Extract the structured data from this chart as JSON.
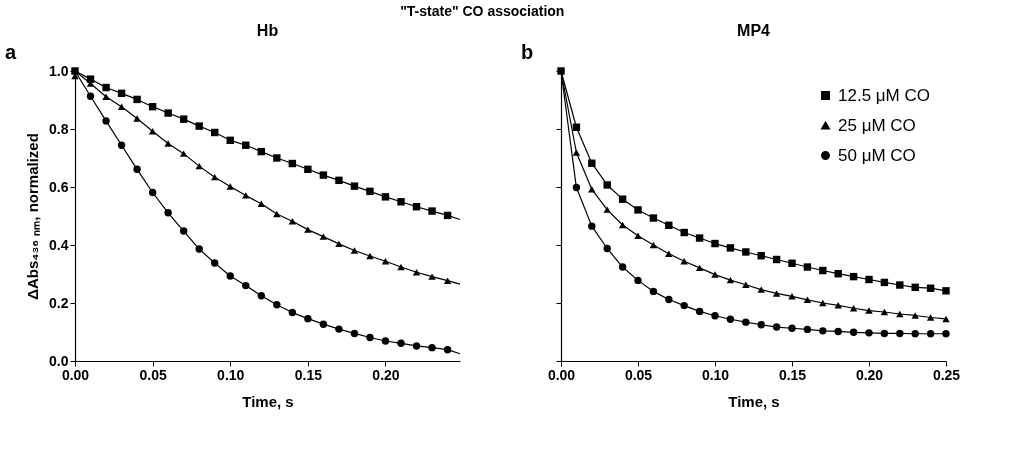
{
  "chart_data": [
    {
      "type": "scatter",
      "title": "Hb",
      "xlabel": "Time, s",
      "ylabel": "ΔAbs₄₃₆ ₙₘ, normalized",
      "annotations": [
        "\"T-state\" CO association",
        "a"
      ],
      "x": [
        0,
        0.01,
        0.02,
        0.03,
        0.04,
        0.05,
        0.06,
        0.07,
        0.08,
        0.09,
        0.1,
        0.11,
        0.12,
        0.13,
        0.14,
        0.15,
        0.16,
        0.17,
        0.18,
        0.19,
        0.2,
        0.21,
        0.22,
        0.23,
        0.24
      ],
      "xlim": [
        0,
        0.248
      ],
      "xticks": [
        {
          "value": 0,
          "label": "0.00"
        },
        {
          "value": 0.05,
          "label": "0.05"
        },
        {
          "value": 0.1,
          "label": "0.10"
        },
        {
          "value": 0.15,
          "label": "0.15"
        },
        {
          "value": 0.2,
          "label": "0.20"
        }
      ],
      "ylim": [
        0,
        1
      ],
      "yticks": [
        {
          "value": 0,
          "label": "0.0"
        },
        {
          "value": 0.2,
          "label": "0.2"
        },
        {
          "value": 0.4,
          "label": "0.4"
        },
        {
          "value": 0.6,
          "label": "0.6"
        },
        {
          "value": 0.8,
          "label": "0.8"
        },
        {
          "value": 1,
          "label": "1.0"
        }
      ],
      "grid": false,
      "series": [
        {
          "color": "#000000",
          "marker": "square",
          "values": [
            1.0,
            0.972,
            0.943,
            0.923,
            0.902,
            0.877,
            0.855,
            0.834,
            0.81,
            0.788,
            0.761,
            0.744,
            0.722,
            0.7,
            0.681,
            0.661,
            0.641,
            0.623,
            0.603,
            0.585,
            0.566,
            0.549,
            0.532,
            0.517,
            0.502
          ]
        },
        {
          "color": "#000000",
          "marker": "triangle",
          "values": [
            0.983,
            0.957,
            0.911,
            0.877,
            0.836,
            0.792,
            0.75,
            0.715,
            0.672,
            0.634,
            0.602,
            0.571,
            0.542,
            0.507,
            0.482,
            0.453,
            0.429,
            0.404,
            0.381,
            0.362,
            0.344,
            0.324,
            0.306,
            0.291,
            0.277
          ]
        },
        {
          "color": "#000000",
          "marker": "circle",
          "values": [
            null,
            0.913,
            0.828,
            0.744,
            0.661,
            0.581,
            0.511,
            0.448,
            0.386,
            0.338,
            0.293,
            0.26,
            0.225,
            0.194,
            0.167,
            0.146,
            0.127,
            0.11,
            0.095,
            0.081,
            0.069,
            0.061,
            0.052,
            0.046,
            0.039
          ]
        },
        {
          "type": "line",
          "color": "#000000",
          "marker": "none",
          "line_style": "solid",
          "x": [
            0,
            0.01,
            0.02,
            0.03,
            0.04,
            0.05,
            0.06,
            0.07,
            0.08,
            0.09,
            0.1,
            0.11,
            0.12,
            0.13,
            0.14,
            0.15,
            0.16,
            0.17,
            0.18,
            0.19,
            0.2,
            0.21,
            0.22,
            0.23,
            0.24,
            0.248
          ],
          "values": [
            1.0,
            0.972,
            0.943,
            0.923,
            0.902,
            0.877,
            0.855,
            0.834,
            0.81,
            0.788,
            0.761,
            0.744,
            0.722,
            0.7,
            0.681,
            0.661,
            0.641,
            0.623,
            0.603,
            0.585,
            0.566,
            0.549,
            0.532,
            0.517,
            0.502,
            0.488
          ]
        },
        {
          "type": "line",
          "color": "#000000",
          "marker": "none",
          "line_style": "solid",
          "x": [
            0,
            0.01,
            0.02,
            0.03,
            0.04,
            0.05,
            0.06,
            0.07,
            0.08,
            0.09,
            0.1,
            0.11,
            0.12,
            0.13,
            0.14,
            0.15,
            0.16,
            0.17,
            0.18,
            0.19,
            0.2,
            0.21,
            0.22,
            0.23,
            0.24,
            0.248
          ],
          "values": [
            1.0,
            0.957,
            0.911,
            0.877,
            0.836,
            0.792,
            0.75,
            0.715,
            0.672,
            0.634,
            0.602,
            0.571,
            0.542,
            0.507,
            0.482,
            0.453,
            0.429,
            0.404,
            0.381,
            0.362,
            0.344,
            0.324,
            0.306,
            0.291,
            0.277,
            0.265
          ]
        },
        {
          "type": "line",
          "color": "#000000",
          "marker": "none",
          "line_style": "solid",
          "x": [
            0,
            0.01,
            0.02,
            0.03,
            0.04,
            0.05,
            0.06,
            0.07,
            0.08,
            0.09,
            0.1,
            0.11,
            0.12,
            0.13,
            0.14,
            0.15,
            0.16,
            0.17,
            0.18,
            0.19,
            0.2,
            0.21,
            0.22,
            0.23,
            0.24,
            0.248
          ],
          "values": [
            1.0,
            0.913,
            0.828,
            0.744,
            0.661,
            0.581,
            0.511,
            0.448,
            0.386,
            0.338,
            0.293,
            0.26,
            0.225,
            0.194,
            0.167,
            0.146,
            0.127,
            0.11,
            0.095,
            0.081,
            0.069,
            0.061,
            0.052,
            0.046,
            0.039,
            0.025
          ]
        }
      ]
    },
    {
      "type": "scatter",
      "title": "MP4",
      "xlabel": "Time, s",
      "annotations": [
        "b"
      ],
      "legend": "top right",
      "tick_labels": "x",
      "x": [
        0,
        0.01,
        0.02,
        0.03,
        0.04,
        0.05,
        0.06,
        0.07,
        0.08,
        0.09,
        0.1,
        0.11,
        0.12,
        0.13,
        0.14,
        0.15,
        0.16,
        0.17,
        0.18,
        0.19,
        0.2,
        0.21,
        0.22,
        0.23,
        0.24,
        0.25
      ],
      "xlim": [
        0,
        0.25
      ],
      "xticks": [
        {
          "value": 0,
          "label": "0.00"
        },
        {
          "value": 0.05,
          "label": "0.05"
        },
        {
          "value": 0.1,
          "label": "0.10"
        },
        {
          "value": 0.15,
          "label": "0.15"
        },
        {
          "value": 0.2,
          "label": "0.20"
        },
        {
          "value": 0.25,
          "label": "0.25"
        }
      ],
      "ylim": [
        0,
        1
      ],
      "yticks": [
        {
          "value": 0,
          "label": null
        },
        {
          "value": 0.2,
          "label": null
        },
        {
          "value": 0.4,
          "label": null
        },
        {
          "value": 0.6,
          "label": null
        },
        {
          "value": 0.8,
          "label": null
        },
        {
          "value": 1,
          "label": null
        }
      ],
      "grid": false,
      "series": [
        {
          "name": "12.5 μM CO",
          "color": "#000000",
          "marker": "square",
          "values": [
            1.0,
            0.806,
            0.682,
            0.607,
            0.558,
            0.521,
            0.493,
            0.468,
            0.443,
            0.424,
            0.405,
            0.39,
            0.376,
            0.363,
            0.35,
            0.337,
            0.324,
            0.312,
            0.301,
            0.291,
            0.281,
            0.271,
            0.262,
            0.254,
            0.251,
            0.242
          ]
        },
        {
          "name": "25 μM CO",
          "color": "#000000",
          "marker": "triangle",
          "values": [
            null,
            0.719,
            0.592,
            0.522,
            0.469,
            0.432,
            0.4,
            0.37,
            0.344,
            0.321,
            0.298,
            0.279,
            0.263,
            0.246,
            0.233,
            0.223,
            0.211,
            0.2,
            0.192,
            0.182,
            0.174,
            0.169,
            0.162,
            0.157,
            0.15,
            0.145
          ]
        },
        {
          "name": "50 μM CO",
          "color": "#000000",
          "marker": "circle",
          "values": [
            null,
            0.598,
            0.465,
            0.388,
            0.324,
            0.278,
            0.24,
            0.212,
            0.191,
            0.171,
            0.156,
            0.144,
            0.134,
            0.125,
            0.117,
            0.113,
            0.109,
            0.104,
            0.102,
            0.099,
            0.097,
            0.095,
            0.095,
            0.094,
            0.094,
            0.094
          ]
        },
        {
          "type": "line",
          "color": "#000000",
          "marker": "none",
          "line_style": "solid",
          "values": [
            1.0,
            0.806,
            0.682,
            0.607,
            0.558,
            0.521,
            0.493,
            0.468,
            0.443,
            0.424,
            0.405,
            0.39,
            0.376,
            0.363,
            0.35,
            0.337,
            0.324,
            0.312,
            0.301,
            0.291,
            0.281,
            0.271,
            0.262,
            0.254,
            0.251,
            0.242
          ]
        },
        {
          "type": "line",
          "color": "#000000",
          "marker": "none",
          "line_style": "solid",
          "values": [
            1.0,
            0.719,
            0.592,
            0.522,
            0.469,
            0.432,
            0.4,
            0.37,
            0.344,
            0.321,
            0.298,
            0.279,
            0.263,
            0.246,
            0.233,
            0.223,
            0.211,
            0.2,
            0.192,
            0.182,
            0.174,
            0.169,
            0.162,
            0.157,
            0.15,
            0.145
          ]
        },
        {
          "type": "line",
          "color": "#000000",
          "marker": "none",
          "line_style": "solid",
          "values": [
            1.0,
            0.598,
            0.465,
            0.388,
            0.324,
            0.278,
            0.24,
            0.212,
            0.191,
            0.171,
            0.156,
            0.144,
            0.134,
            0.125,
            0.117,
            0.113,
            0.109,
            0.104,
            0.102,
            0.099,
            0.097,
            0.095,
            0.095,
            0.094,
            0.094,
            0.094
          ]
        }
      ]
    }
  ]
}
